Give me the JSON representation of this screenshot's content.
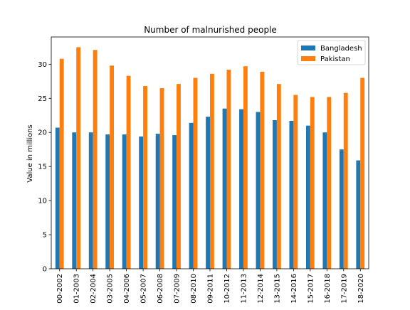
{
  "chart_data": {
    "type": "bar",
    "title": "Number of malnurished people",
    "xlabel": "",
    "ylabel": "Value in millions",
    "ylim": [
      0,
      34
    ],
    "yticks": [
      0,
      5,
      10,
      15,
      20,
      25,
      30
    ],
    "grid": false,
    "legend_position": "top-right",
    "categories": [
      "00-2002",
      "01-2003",
      "02-2004",
      "03-2005",
      "04-2006",
      "05-2007",
      "06-2008",
      "07-2009",
      "08-2010",
      "09-2011",
      "10-2012",
      "11-2013",
      "12-2014",
      "13-2015",
      "14-2016",
      "15-2017",
      "16-2018",
      "17-2019",
      "18-2020"
    ],
    "series": [
      {
        "name": "Bangladesh",
        "color": "#1f77b4",
        "values": [
          20.7,
          20.0,
          20.0,
          19.7,
          19.7,
          19.4,
          19.8,
          19.6,
          21.4,
          22.3,
          23.5,
          23.4,
          23.0,
          21.8,
          21.7,
          21.0,
          20.0,
          17.5,
          15.9
        ]
      },
      {
        "name": "Pakistan",
        "color": "#ff7f0e",
        "values": [
          30.8,
          32.5,
          32.1,
          29.8,
          28.3,
          26.8,
          26.5,
          27.1,
          28.0,
          28.6,
          29.2,
          29.7,
          28.9,
          27.1,
          25.5,
          25.2,
          25.2,
          25.8,
          28.0
        ]
      }
    ]
  }
}
